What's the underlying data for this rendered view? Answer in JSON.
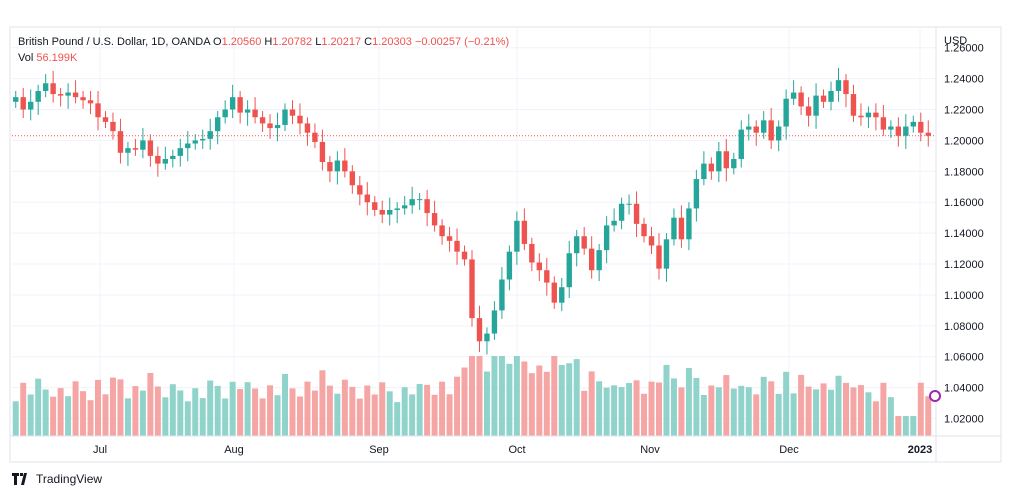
{
  "legend": {
    "symbol": "British Pound / U.S. Dollar, 1D, OANDA",
    "open_label": "O",
    "open": "1.20560",
    "high_label": "H",
    "high": "1.20782",
    "low_label": "L",
    "low": "1.20217",
    "close_label": "C",
    "close": "1.20303",
    "change": "−0.00257 (−0.21%)",
    "vol_label": "Vol",
    "vol": "56.199K"
  },
  "axis_currency": "USD",
  "branding": "TradingView",
  "colors": {
    "up": "#26a69a",
    "down": "#ef5350",
    "up_vol": "#8fd3cb",
    "down_vol": "#f5a5a3",
    "grid": "#f0f3fa",
    "last_price_line": "#ef5350"
  },
  "chart_data": {
    "type": "candlestick",
    "title": "British Pound / U.S. Dollar, 1D, OANDA",
    "y_axis_ticks": [
      "1.26000",
      "1.24000",
      "1.22000",
      "1.20000",
      "1.18000",
      "1.16000",
      "1.14000",
      "1.12000",
      "1.10000",
      "1.08000",
      "1.06000",
      "1.04000",
      "1.02000"
    ],
    "ylim": [
      1.01,
      1.265
    ],
    "x_axis_ticks": [
      "Jul",
      "Aug",
      "Sep",
      "Oct",
      "Nov",
      "Dec",
      "2023"
    ],
    "last_price": 1.20303,
    "series": [
      {
        "name": "GBP/USD",
        "close": [
          1.228,
          1.22,
          1.225,
          1.232,
          1.237,
          1.23,
          1.229,
          1.231,
          1.228,
          1.226,
          1.224,
          1.215,
          1.212,
          1.206,
          1.192,
          1.195,
          1.194,
          1.2,
          1.19,
          1.185,
          1.188,
          1.19,
          1.195,
          1.198,
          1.2,
          1.201,
          1.206,
          1.215,
          1.22,
          1.228,
          1.218,
          1.22,
          1.215,
          1.211,
          1.208,
          1.21,
          1.22,
          1.216,
          1.211,
          1.205,
          1.199,
          1.186,
          1.18,
          1.187,
          1.18,
          1.171,
          1.165,
          1.16,
          1.155,
          1.152,
          1.155,
          1.156,
          1.158,
          1.162,
          1.162,
          1.153,
          1.145,
          1.138,
          1.135,
          1.128,
          1.123,
          1.085,
          1.07,
          1.075,
          1.09,
          1.11,
          1.128,
          1.148,
          1.133,
          1.121,
          1.116,
          1.108,
          1.095,
          1.105,
          1.127,
          1.138,
          1.13,
          1.116,
          1.129,
          1.145,
          1.148,
          1.159,
          1.159,
          1.146,
          1.138,
          1.132,
          1.117,
          1.136,
          1.15,
          1.136,
          1.156,
          1.175,
          1.185,
          1.18,
          1.193,
          1.182,
          1.188,
          1.207,
          1.209,
          1.205,
          1.213,
          1.2,
          1.209,
          1.227,
          1.231,
          1.222,
          1.216,
          1.229,
          1.225,
          1.232,
          1.239,
          1.23,
          1.216,
          1.215,
          1.218,
          1.215,
          1.207,
          1.209,
          1.203,
          1.209,
          1.212,
          1.205,
          1.203
        ]
      }
    ]
  }
}
